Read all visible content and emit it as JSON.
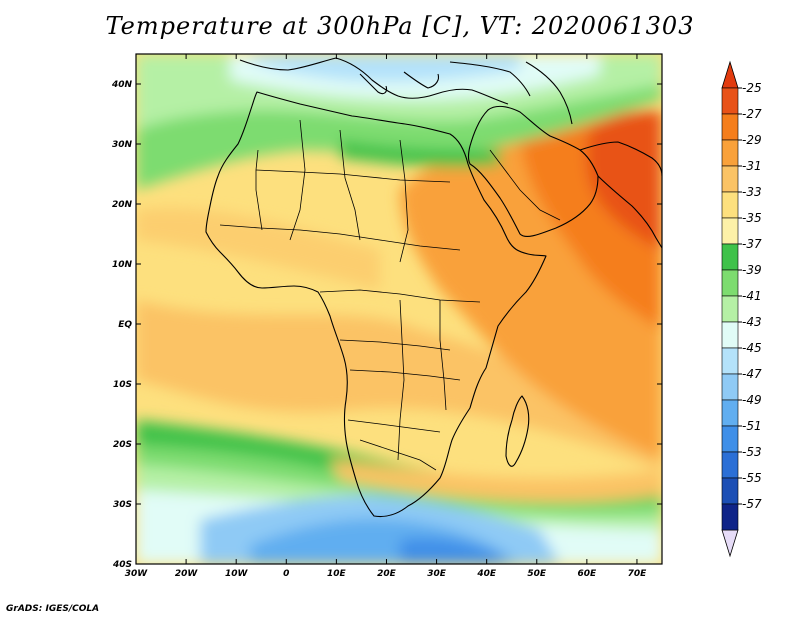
{
  "title": "Temperature at 300hPa [C], VT: 2020061303",
  "credit": "GrADS: IGES/COLA",
  "map": {
    "projection": "lat-lon",
    "lon_range": [
      -30,
      75
    ],
    "lat_range": [
      -40,
      45
    ],
    "lon_ticks": [
      {
        "value": -30,
        "label": "30W"
      },
      {
        "value": -20,
        "label": "20W"
      },
      {
        "value": -10,
        "label": "10W"
      },
      {
        "value": 0,
        "label": "0"
      },
      {
        "value": 10,
        "label": "10E"
      },
      {
        "value": 20,
        "label": "20E"
      },
      {
        "value": 30,
        "label": "30E"
      },
      {
        "value": 40,
        "label": "40E"
      },
      {
        "value": 50,
        "label": "50E"
      },
      {
        "value": 60,
        "label": "60E"
      },
      {
        "value": 70,
        "label": "70E"
      }
    ],
    "lat_ticks": [
      {
        "value": 40,
        "label": "40N"
      },
      {
        "value": 30,
        "label": "30N"
      },
      {
        "value": 20,
        "label": "20N"
      },
      {
        "value": 10,
        "label": "10N"
      },
      {
        "value": 0,
        "label": "EQ"
      },
      {
        "value": -10,
        "label": "10S"
      },
      {
        "value": -20,
        "label": "20S"
      },
      {
        "value": -30,
        "label": "30S"
      },
      {
        "value": -40,
        "label": "40S"
      }
    ]
  },
  "colorbar": {
    "levels": [
      {
        "label": "-25",
        "color": "#e85218"
      },
      {
        "label": "-27",
        "color": "#f57e1c"
      },
      {
        "label": "-29",
        "color": "#f9a13a"
      },
      {
        "label": "-31",
        "color": "#fbc365"
      },
      {
        "label": "-33",
        "color": "#fde07e"
      },
      {
        "label": "-35",
        "color": "#fdf1a8"
      },
      {
        "label": "-37",
        "color": "#3fc24a"
      },
      {
        "label": "-39",
        "color": "#7ddc6f"
      },
      {
        "label": "-41",
        "color": "#b5f0a5"
      },
      {
        "label": "-43",
        "color": "#e1fcf7"
      },
      {
        "label": "-45",
        "color": "#b4e2fa"
      },
      {
        "label": "-47",
        "color": "#8fcaf5"
      },
      {
        "label": "-49",
        "color": "#61aef0"
      },
      {
        "label": "-51",
        "color": "#3f8fe8"
      },
      {
        "label": "-53",
        "color": "#2b6fd6"
      },
      {
        "label": "-55",
        "color": "#1c4fb5"
      },
      {
        "label": "-57",
        "color": "#0f2488"
      }
    ],
    "top_color": "#e23b0f",
    "bottom_color": "#e6dcf7"
  }
}
